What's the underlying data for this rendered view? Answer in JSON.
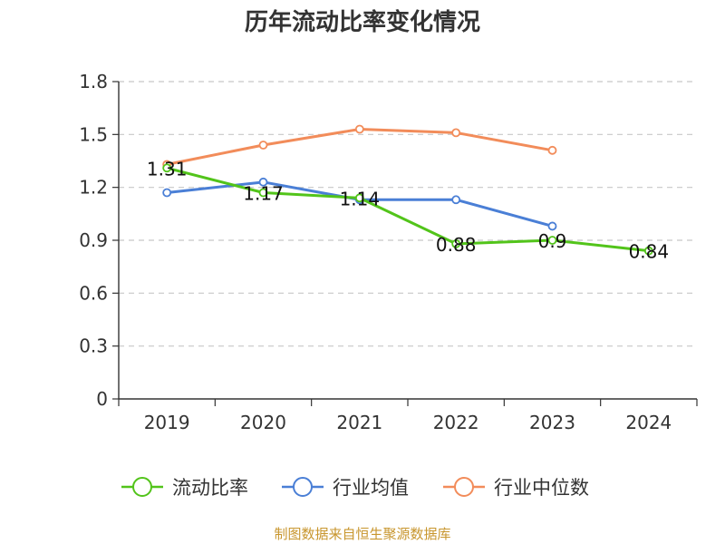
{
  "chart_data": {
    "type": "line",
    "title": "历年流动比率变化情况",
    "categories": [
      "2019",
      "2020",
      "2021",
      "2022",
      "2023",
      "2024"
    ],
    "ylim": [
      0,
      1.8
    ],
    "y_ticks": [
      "0",
      "0.3",
      "0.6",
      "0.9",
      "1.2",
      "1.5",
      "1.8"
    ],
    "grid": true,
    "legend_position": "bottom",
    "series": [
      {
        "name": "流动比率",
        "color": "#52c41a",
        "values": [
          1.31,
          1.17,
          1.14,
          0.88,
          0.9,
          0.84
        ],
        "data_labels": [
          "1.31",
          "1.17",
          "1.14",
          "0.88",
          "0.9",
          "0.84"
        ]
      },
      {
        "name": "行业均值",
        "color": "#4a7fd6",
        "values": [
          1.17,
          1.23,
          1.13,
          1.13,
          0.98,
          null
        ]
      },
      {
        "name": "行业中位数",
        "color": "#f28c5a",
        "values": [
          1.33,
          1.44,
          1.53,
          1.51,
          1.41,
          null
        ]
      }
    ]
  },
  "source_note": "制图数据来自恒生聚源数据库"
}
